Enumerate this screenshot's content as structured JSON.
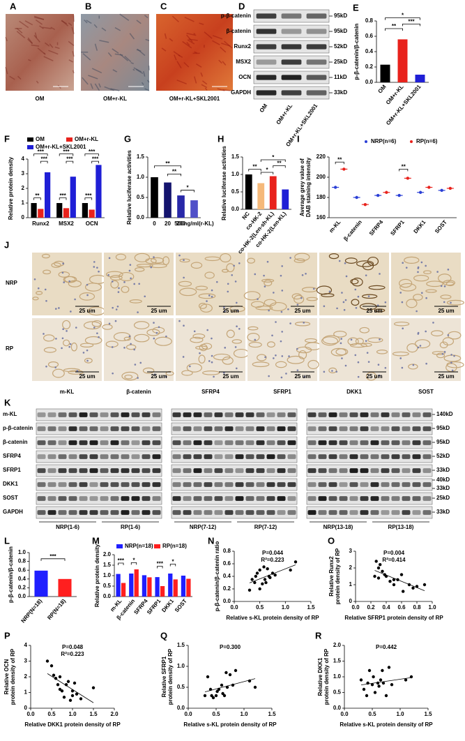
{
  "photos": [
    {
      "panel": "A",
      "label": "OM"
    },
    {
      "panel": "B",
      "label": "OM+r-KL"
    },
    {
      "panel": "C",
      "label": "OM+r-KL+SKL2001"
    }
  ],
  "blot_d": {
    "panel": "D",
    "rows": [
      "p-β-catenin",
      "β-catenin",
      "Runx2",
      "MSX2",
      "OCN",
      "GAPDH"
    ],
    "sizes": [
      "95kD",
      "95kD",
      "52kD",
      "25kD",
      "11kD",
      "33kD"
    ],
    "lanes": [
      "OM",
      "OM+r-KL",
      "OM+r-KL+SKL2001"
    ]
  },
  "ihc": {
    "panel": "J",
    "rows": [
      "NRP",
      "RP"
    ],
    "columns": [
      "m-KL",
      "β-catenin",
      "SFRP4",
      "SFRP1",
      "DKK1",
      "SOST"
    ],
    "scale": "25 um"
  },
  "blot_k": {
    "panel": "K",
    "rows": [
      "m-KL",
      "p-β-catenin",
      "β-catenin",
      "SFRP4",
      "SFRP1",
      "DKK1",
      "SOST",
      "GAPDH"
    ],
    "sizes": [
      [
        "140kD"
      ],
      [
        "95kD"
      ],
      [
        "95kD"
      ],
      [
        "52kD"
      ],
      [
        "33kD"
      ],
      [
        "40kD",
        "33kD"
      ],
      [
        "25kD"
      ],
      [
        "33kD"
      ]
    ],
    "groups": [
      "NRP(1-6)",
      "RP(1-6)",
      "NRP(7-12)",
      "RP(7-12)",
      "NRP(13-18)",
      "RP(13-18)"
    ]
  },
  "chart_data": [
    {
      "type": "bar",
      "panel": "E",
      "y_label": "p-β-catenin/β-catenin",
      "categories": [
        "OM",
        "OM+r-KL",
        "OM+r-KL+SKL2001"
      ],
      "values": [
        0.23,
        0.56,
        0.1
      ],
      "colors": [
        "#000000",
        "#e8221c",
        "#1f1fd6"
      ],
      "ylim": [
        0,
        0.8
      ],
      "yticks": [
        {
          "value": 0,
          "label": "0.0"
        },
        0.2,
        0.4,
        0.6,
        0.8
      ],
      "annotations": [
        "*",
        "**",
        "***"
      ]
    },
    {
      "type": "bar",
      "panel": "F",
      "y_label": "Relative protein density",
      "categories": [
        "Runx2",
        "MSX2",
        "OCN"
      ],
      "series": [
        {
          "name": "OM",
          "color": "#000000",
          "values": [
            1,
            1,
            1
          ]
        },
        {
          "name": "OM+r-KL",
          "color": "#e8221c",
          "values": [
            0.6,
            0.65,
            0.55
          ]
        },
        {
          "name": "OM+r-KL+SKL2001",
          "color": "#1f1fd6",
          "values": [
            3.1,
            2.8,
            3.6
          ]
        }
      ],
      "ylim": [
        0,
        4
      ],
      "yticks": [
        0,
        1,
        2,
        3,
        4
      ],
      "annotations": [
        "**",
        "***",
        "***",
        "***",
        "***",
        "***",
        "***",
        "***",
        "***"
      ]
    },
    {
      "type": "bar",
      "panel": "G",
      "y_label": "Relative luciferase activities",
      "categories": [
        "0",
        "20",
        "200",
        "500ng/ml(r-KL)"
      ],
      "values": [
        1,
        0.87,
        0.55,
        0.43
      ],
      "colors": [
        "#000000",
        "#14146e",
        "#2828a8",
        "#5050c8"
      ],
      "ylim": [
        0,
        1.5
      ],
      "yticks": [
        {
          "value": 0,
          "label": "0.0"
        },
        0.5,
        {
          "value": 1,
          "label": "1.0"
        },
        1.5
      ],
      "annotations": [
        "**",
        "**",
        "*"
      ]
    },
    {
      "type": "bar",
      "panel": "H",
      "y_label": "Relative luciferase activities",
      "categories": [
        "NC",
        "co-HK-2",
        "co-HK-2(Len-sh-KL)",
        "co-HK-2(Len-KL)"
      ],
      "values": [
        1,
        0.75,
        0.95,
        0.57
      ],
      "colors": [
        "#000000",
        "#f5b97a",
        "#e8221c",
        "#1f1fd6"
      ],
      "ylim": [
        0,
        1.5
      ],
      "yticks": [
        {
          "value": 0,
          "label": "0.0"
        },
        0.5,
        {
          "value": 1,
          "label": "1.0"
        },
        1.5
      ],
      "annotations": [
        "**",
        "*",
        "*",
        "**"
      ]
    },
    {
      "type": "dot",
      "panel": "I",
      "y_label": [
        "Average grey value of",
        "DAB staining intensity"
      ],
      "categories": [
        "m-KL",
        "β-catenin",
        "SFRP4",
        "SFRP1",
        "DKK1",
        "SOST"
      ],
      "series": [
        {
          "name": "NRP(n=6)",
          "color": "#2a3fd6",
          "values": [
            190,
            180,
            182,
            182,
            185,
            187
          ]
        },
        {
          "name": "RP(n=6)",
          "color": "#e8221c",
          "values": [
            208,
            173,
            185,
            199,
            190,
            189
          ]
        }
      ],
      "ylim": [
        160,
        220
      ],
      "yticks": [
        160,
        180,
        200,
        220
      ],
      "annotations": [
        "**",
        "**"
      ]
    },
    {
      "type": "bar",
      "panel": "L",
      "y_label": "p-β-catenin/β-catenin",
      "categories": [
        "NRP(N=18)",
        "RP(N=18)"
      ],
      "values": [
        0.59,
        0.4
      ],
      "colors": [
        "#1f1fff",
        "#ff1f1f"
      ],
      "ylim": [
        0,
        1
      ],
      "yticks": [
        {
          "value": 0,
          "label": "0.0"
        },
        0.2,
        0.4,
        0.6,
        0.8,
        {
          "value": 1,
          "label": "1.0"
        }
      ],
      "annotations": [
        "***"
      ]
    },
    {
      "type": "bar",
      "panel": "M",
      "y_label": "Relative protein density",
      "categories": [
        "m-KL",
        "β-catenin",
        "SFRP4",
        "SFRP1",
        "DKK1",
        "SOST"
      ],
      "series": [
        {
          "name": "NRP(n=18)",
          "color": "#1f1fff",
          "values": [
            1.08,
            1.1,
            1.02,
            0.93,
            1.1,
            1.0
          ]
        },
        {
          "name": "RP(n=18)",
          "color": "#ff1f1f",
          "values": [
            0.65,
            1.3,
            0.92,
            0.5,
            0.82,
            0.85
          ]
        }
      ],
      "ylim": [
        0,
        2
      ],
      "yticks": [
        {
          "value": 0,
          "label": "0.0"
        },
        0.5,
        {
          "value": 1,
          "label": "1.0"
        },
        1.5,
        {
          "value": 2,
          "label": "2.0"
        }
      ],
      "annotations": [
        "***",
        "*",
        "***",
        "*"
      ]
    },
    {
      "type": "scatter",
      "panel": "N",
      "stats": [
        "P=0.044",
        "R²=0.223"
      ],
      "x_label": "Relative s-KL protein density of RP",
      "y_label": [
        "p-β-catenin/β-catenin ratio"
      ],
      "x": [
        0.3,
        0.35,
        0.4,
        0.42,
        0.45,
        0.5,
        0.5,
        0.55,
        0.58,
        0.6,
        0.62,
        0.65,
        0.68,
        0.7,
        0.75,
        0.8,
        1.1,
        1.2
      ],
      "y": [
        0.18,
        0.35,
        0.3,
        0.4,
        0.45,
        0.2,
        0.5,
        0.28,
        0.55,
        0.35,
        0.3,
        0.52,
        0.4,
        0.38,
        0.45,
        0.42,
        0.5,
        0.63
      ],
      "xlim": [
        0,
        1.5
      ],
      "xticks": [
        {
          "value": 0,
          "label": "0.0"
        },
        0.5,
        {
          "value": 1,
          "label": "1.0"
        },
        1.5
      ],
      "ylim": [
        0,
        0.8
      ],
      "yticks": [
        {
          "value": 0,
          "label": "0.0"
        },
        0.2,
        0.4,
        0.6,
        0.8
      ]
    },
    {
      "type": "scatter",
      "panel": "O",
      "stats": [
        "P=0.004",
        "R²=0.414"
      ],
      "x_label": "Relative SFRP1 protein density of RP",
      "y_label": [
        "Relative Runx2",
        "protein density of RP"
      ],
      "x": [
        0.25,
        0.27,
        0.3,
        0.3,
        0.32,
        0.35,
        0.38,
        0.4,
        0.45,
        0.5,
        0.5,
        0.55,
        0.6,
        0.62,
        0.7,
        0.75,
        0.8,
        0.9
      ],
      "y": [
        1.5,
        2.4,
        2.0,
        1.4,
        2.2,
        1.8,
        1.6,
        1.5,
        1.2,
        1.0,
        1.3,
        1.3,
        1.6,
        0.6,
        1.0,
        0.8,
        0.9,
        1.0
      ],
      "xlim": [
        0,
        1
      ],
      "xticks": [
        {
          "value": 0,
          "label": "0.0"
        },
        0.2,
        0.4,
        0.6,
        0.8,
        {
          "value": 1,
          "label": "1.0"
        }
      ],
      "ylim": [
        0,
        3
      ],
      "yticks": [
        0,
        1,
        2,
        3
      ]
    },
    {
      "type": "scatter",
      "panel": "P",
      "stats": [
        "P=0.048",
        "R²=0.223"
      ],
      "x_label": "Relative DKK1 protein density of RP",
      "y_label": [
        "Relative OCN",
        "protein density of RP"
      ],
      "x": [
        0.4,
        0.5,
        0.55,
        0.6,
        0.65,
        0.7,
        0.7,
        0.75,
        0.8,
        0.85,
        0.9,
        0.95,
        1.0,
        1.0,
        1.05,
        1.1,
        1.2,
        1.5
      ],
      "y": [
        3.0,
        2.7,
        2.1,
        1.9,
        1.5,
        2.0,
        1.2,
        1.1,
        0.7,
        1.5,
        1.7,
        0.5,
        1.1,
        0.8,
        1.6,
        0.9,
        0.6,
        1.3
      ],
      "xlim": [
        0,
        2
      ],
      "xticks": [
        {
          "value": 0,
          "label": "0.0"
        },
        0.5,
        {
          "value": 1,
          "label": "1.0"
        },
        1.5,
        {
          "value": 2,
          "label": "2.0"
        }
      ],
      "ylim": [
        0,
        4
      ],
      "yticks": [
        0,
        1,
        2,
        3,
        4
      ]
    },
    {
      "type": "scatter",
      "panel": "Q",
      "stats": [
        "P=0.300"
      ],
      "x_label": "Relative s-KL protein density of RP",
      "y_label": [
        "Relative SFRP1",
        "protein density of RP"
      ],
      "x": [
        0.3,
        0.35,
        0.4,
        0.42,
        0.45,
        0.5,
        0.52,
        0.55,
        0.6,
        0.62,
        0.65,
        0.68,
        0.7,
        0.75,
        0.8,
        0.85,
        1.1,
        1.2
      ],
      "y": [
        0.3,
        0.75,
        0.45,
        0.3,
        0.25,
        0.3,
        0.4,
        0.45,
        0.55,
        0.35,
        0.3,
        0.85,
        0.5,
        0.8,
        0.55,
        0.9,
        0.65,
        0.5
      ],
      "xlim": [
        0,
        1.5
      ],
      "xticks": [
        {
          "value": 0,
          "label": "0.0"
        },
        0.5,
        {
          "value": 1,
          "label": "1.0"
        },
        1.5
      ],
      "ylim": [
        0,
        1.5
      ],
      "yticks": [
        {
          "value": 0,
          "label": "0.0"
        },
        0.5,
        {
          "value": 1,
          "label": "1.0"
        },
        1.5
      ]
    },
    {
      "type": "scatter",
      "panel": "R",
      "stats": [
        "P=0.442"
      ],
      "x_label": "Relative s-KL protein density of RP",
      "y_label": [
        "Relative DKK1",
        "protein density of RP"
      ],
      "x": [
        0.3,
        0.35,
        0.4,
        0.42,
        0.45,
        0.5,
        0.52,
        0.55,
        0.6,
        0.62,
        0.65,
        0.68,
        0.7,
        0.75,
        0.8,
        0.85,
        1.1,
        1.2
      ],
      "y": [
        0.9,
        0.6,
        0.4,
        0.8,
        1.2,
        0.75,
        1.0,
        0.5,
        0.8,
        0.7,
        0.9,
        1.2,
        0.8,
        0.4,
        1.3,
        0.75,
        0.9,
        1.0
      ],
      "xlim": [
        0,
        1.5
      ],
      "xticks": [
        {
          "value": 0,
          "label": "0.0"
        },
        0.5,
        {
          "value": 1,
          "label": "1.0"
        },
        1.5
      ],
      "ylim": [
        0,
        2
      ],
      "yticks": [
        {
          "value": 0,
          "label": "0.0"
        },
        0.5,
        {
          "value": 1,
          "label": "1.0"
        },
        1.5,
        {
          "value": 2,
          "label": "2.0"
        }
      ]
    }
  ]
}
